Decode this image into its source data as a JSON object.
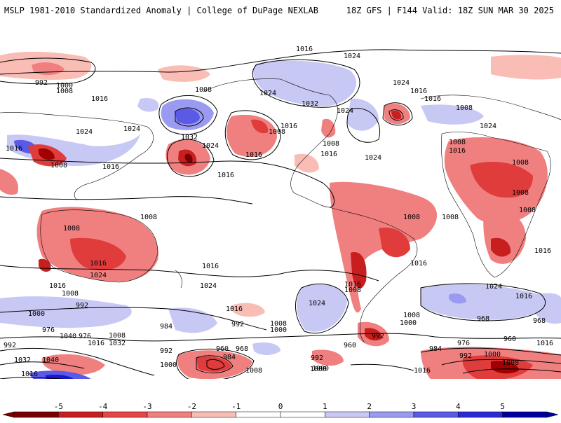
{
  "header": {
    "left_title": "MSLP 1981-2010 Standardized Anomaly | College of DuPage NEXLAB",
    "right_title": "18Z GFS | F144 Valid: 18Z SUN MAR 30 2025"
  },
  "contour_labels": [
    "992",
    "1000",
    "1008",
    "1016",
    "1024",
    "1032",
    "1040",
    "976",
    "984",
    "960",
    "968"
  ],
  "colors": {
    "neg_strong": "#a00000",
    "neg_mid": "#e03c3c",
    "neg_light": "#f08080",
    "neg_pale": "#f9bdb6",
    "pos_pale": "#c8c8f5",
    "pos_light": "#9a9af0",
    "pos_mid": "#5a5ae6",
    "pos_strong": "#1818c8",
    "contour": "#000000",
    "coast": "#000000"
  },
  "colorbar": {
    "ticks": [
      "-5",
      "-4",
      "-3",
      "-2",
      "-1",
      "0",
      "1",
      "2",
      "3",
      "4",
      "5"
    ],
    "colors": [
      "#7a0000",
      "#c81e1e",
      "#e64646",
      "#f08080",
      "#f9bdb6",
      "#ffffff",
      "#ffffff",
      "#c8c8f5",
      "#9a9af0",
      "#5a5ae6",
      "#2a2ad8",
      "#0000a0"
    ]
  }
}
